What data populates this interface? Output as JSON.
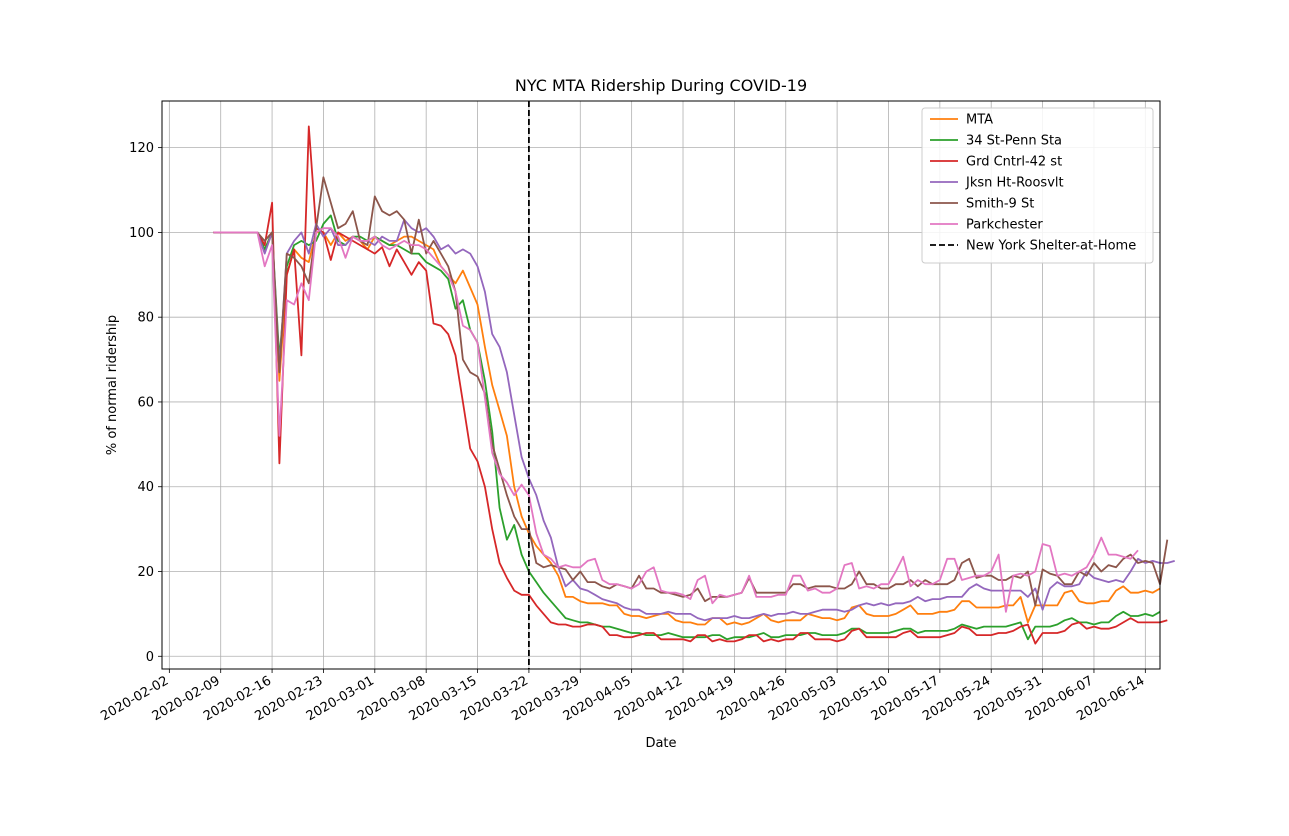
{
  "chart_data": {
    "type": "line",
    "title": "NYC MTA Ridership During COVID-19",
    "xlabel": "Date",
    "ylabel": "% of normal ridership",
    "xlim": [
      "2020-02-01",
      "2020-06-16"
    ],
    "ylim": [
      -3,
      131
    ],
    "grid": true,
    "legend_position": "top-right",
    "x_ticks": [
      "2020-02-02",
      "2020-02-09",
      "2020-02-16",
      "2020-02-23",
      "2020-03-01",
      "2020-03-08",
      "2020-03-15",
      "2020-03-22",
      "2020-03-29",
      "2020-04-05",
      "2020-04-12",
      "2020-04-19",
      "2020-04-26",
      "2020-05-03",
      "2020-05-10",
      "2020-05-17",
      "2020-05-24",
      "2020-05-31",
      "2020-06-07",
      "2020-06-14"
    ],
    "y_ticks": [
      0,
      20,
      40,
      60,
      80,
      100,
      120
    ],
    "start_date": "2020-02-08",
    "series": [
      {
        "name": "MTA",
        "color": "#ff7f0e",
        "values": [
          100,
          100,
          100,
          100,
          100,
          100,
          100,
          96,
          100,
          65,
          90,
          96,
          94,
          93,
          100,
          100,
          97,
          100,
          98,
          99,
          98,
          96,
          99,
          98,
          97,
          98,
          99,
          99,
          98,
          97,
          96,
          92,
          90,
          88,
          91,
          87,
          83,
          73,
          64,
          58,
          52,
          40,
          33,
          29,
          26,
          24,
          22,
          19,
          14,
          14,
          13,
          12.5,
          12.5,
          12.5,
          12,
          12,
          10,
          9.5,
          9.5,
          9,
          9.5,
          10,
          10,
          8.5,
          8,
          8,
          7.5,
          7.5,
          9,
          9,
          7.5,
          8,
          7.5,
          8,
          9,
          10,
          8.5,
          8,
          8.5,
          8.5,
          8.5,
          10,
          9.5,
          9,
          9,
          8.5,
          9,
          11.5,
          12,
          10,
          9.5,
          9.5,
          9.5,
          10,
          11,
          12,
          10,
          10,
          10,
          10.5,
          10.5,
          11,
          13,
          13,
          11.5,
          11.5,
          11.5,
          11.5,
          12,
          12,
          14,
          8,
          12,
          12,
          12,
          12,
          15,
          15.5,
          13,
          12.5,
          12.5,
          13,
          13,
          15.5,
          16.5,
          15,
          15,
          15.5,
          15,
          16
        ]
      },
      {
        "name": "34 St-Penn Sta",
        "color": "#2ca02c",
        "values": [
          100,
          100,
          100,
          100,
          100,
          100,
          100,
          96,
          100,
          70,
          92,
          97,
          98,
          97,
          98,
          102,
          104,
          98,
          97,
          99,
          99,
          98,
          99,
          98,
          97,
          97,
          96,
          95,
          95,
          93,
          92,
          91,
          89,
          82,
          84,
          77,
          74,
          65,
          53,
          35,
          27.5,
          31,
          24,
          20,
          17.5,
          15,
          13,
          11,
          9,
          8.5,
          8,
          8,
          7.5,
          7,
          7,
          6.5,
          6,
          5.5,
          5.5,
          5,
          5,
          5,
          5.5,
          5,
          4.5,
          4.5,
          4.5,
          4.5,
          5,
          5,
          4,
          4.5,
          4.5,
          4.5,
          5,
          5.5,
          4.5,
          4.5,
          5,
          5,
          5,
          5.5,
          5.5,
          5,
          5,
          5,
          5.5,
          6.5,
          6.5,
          5.5,
          5.5,
          5.5,
          5.5,
          6,
          6.5,
          6.5,
          5.5,
          6,
          6,
          6,
          6,
          6.5,
          7.5,
          7,
          6.5,
          7,
          7,
          7,
          7,
          7.5,
          8,
          4,
          7,
          7,
          7,
          7.5,
          8.5,
          9,
          8,
          8,
          7.5,
          8,
          8,
          9.5,
          10.5,
          9.5,
          9.5,
          10,
          9.5,
          10.5
        ]
      },
      {
        "name": "Grd Cntrl-42 st",
        "color": "#d62728",
        "values": [
          100,
          100,
          100,
          100,
          100,
          100,
          100,
          97,
          107,
          45.5,
          90,
          96,
          71,
          125,
          101,
          100,
          93.5,
          100,
          99,
          98,
          97,
          96,
          95,
          96.5,
          92,
          96,
          93,
          90,
          93,
          91,
          78.5,
          78,
          76,
          71,
          60,
          49,
          46,
          40,
          30,
          22,
          18.5,
          15.5,
          14.5,
          14.5,
          12,
          10,
          8,
          7.5,
          7.5,
          7,
          7,
          7.5,
          7.5,
          7,
          5,
          5,
          4.5,
          4.5,
          5,
          5.5,
          5.5,
          4,
          4,
          4,
          4,
          3.5,
          5,
          5,
          3.5,
          4,
          3.5,
          3.5,
          4,
          5,
          5,
          3.5,
          4,
          3.5,
          4,
          4,
          5.5,
          5.5,
          4,
          4,
          4,
          3.5,
          4,
          6,
          6.5,
          4.5,
          4.5,
          4.5,
          4.5,
          4.5,
          5.5,
          6,
          4.5,
          4.5,
          4.5,
          4.5,
          5,
          5.5,
          7,
          6.5,
          5,
          5,
          5,
          5.5,
          5.5,
          6,
          7,
          7.5,
          3,
          5.5,
          5.5,
          5.5,
          6,
          7.5,
          8,
          6.5,
          7,
          6.5,
          6.5,
          7,
          8,
          9,
          8,
          8,
          8,
          8,
          8.5
        ]
      },
      {
        "name": "Jksn Ht-Roosvlt",
        "color": "#9467bd",
        "values": [
          100,
          100,
          100,
          100,
          100,
          100,
          100,
          95,
          100,
          68,
          95,
          98,
          100,
          95,
          102,
          99,
          101,
          97,
          97,
          99,
          98,
          98,
          97,
          99,
          98,
          98,
          103,
          101,
          100,
          101,
          99,
          96,
          97,
          95,
          96,
          95,
          92,
          86,
          76,
          73,
          67,
          57,
          47,
          42,
          38,
          32,
          28,
          21,
          16.5,
          18,
          16,
          15.5,
          14.5,
          13.5,
          13,
          12.5,
          11.5,
          11,
          11,
          10,
          10,
          10,
          10.5,
          10,
          10,
          10,
          9,
          8.5,
          9,
          9,
          9,
          9.5,
          9,
          9,
          9.5,
          10,
          9.5,
          10,
          10,
          10.5,
          10,
          10,
          10.5,
          11,
          11,
          11,
          10.5,
          11,
          12,
          12.5,
          12,
          12.5,
          12,
          12.5,
          12.5,
          13,
          14,
          13,
          13.5,
          13.5,
          14,
          14,
          14,
          16,
          17,
          16,
          15.5,
          15.5,
          15.5,
          15.5,
          15.5,
          14,
          16,
          11,
          16,
          17.5,
          16.5,
          16.5,
          17,
          20,
          18.5,
          18,
          17.5,
          18,
          17.5,
          20,
          23,
          22,
          22.5,
          22,
          22,
          22.5
        ]
      },
      {
        "name": "Smith-9 St",
        "color": "#8c564b",
        "values": [
          100,
          100,
          100,
          100,
          100,
          100,
          100,
          98,
          100,
          67,
          95,
          94,
          92,
          88,
          101,
          113,
          107,
          101,
          102,
          105,
          98,
          97,
          108.5,
          105,
          104,
          105,
          103,
          95,
          103,
          95,
          98,
          95,
          92,
          86,
          70,
          67,
          66,
          62,
          50,
          44,
          38,
          33,
          30,
          30,
          22,
          21,
          21.5,
          21,
          20.5,
          18,
          20,
          17.5,
          17.5,
          16.5,
          16,
          17,
          16.5,
          16,
          19,
          16,
          16,
          15,
          15,
          14.5,
          14,
          14.5,
          16,
          13,
          14,
          14,
          14,
          14.5,
          15,
          18.5,
          15,
          15,
          15,
          15,
          15,
          17,
          17,
          16,
          16.5,
          16.5,
          16.5,
          16,
          16,
          17,
          20,
          17,
          17,
          16,
          16,
          17,
          17,
          18,
          16.5,
          18,
          17,
          17,
          17,
          18,
          22,
          23,
          18.5,
          19,
          19,
          18,
          18,
          19,
          18.5,
          20,
          12,
          20.5,
          19.5,
          19,
          17,
          17,
          20,
          19,
          22,
          20,
          21.5,
          21,
          23,
          24,
          22,
          22.5,
          22,
          17,
          27.5
        ]
      },
      {
        "name": "Parkchester",
        "color": "#e377c2",
        "values": [
          100,
          100,
          100,
          100,
          100,
          100,
          100,
          92,
          97,
          52,
          84,
          83,
          88,
          84,
          100,
          101,
          101,
          99,
          94,
          99,
          98,
          98,
          99,
          97,
          96,
          97,
          98,
          97,
          97,
          96,
          94,
          92,
          90,
          86,
          78,
          77,
          74,
          61,
          48,
          43,
          41,
          38,
          40.5,
          38,
          29,
          24,
          23,
          21,
          21.5,
          21,
          21,
          22.5,
          23,
          18,
          17,
          17,
          16.5,
          16,
          17,
          20,
          21,
          15.5,
          15,
          15,
          14.5,
          13.5,
          18,
          19,
          12.5,
          14.5,
          14,
          14.5,
          15,
          19,
          14,
          14,
          14,
          14.5,
          14.5,
          19,
          19,
          15.5,
          16,
          15,
          15,
          16,
          21.5,
          22,
          16,
          16.5,
          16,
          17,
          17,
          20,
          23.5,
          16.5,
          18,
          17,
          17,
          18,
          23,
          23,
          18,
          18.5,
          19,
          19,
          20,
          24,
          10.5,
          19,
          19.5,
          19,
          20,
          26.5,
          26,
          19,
          19.5,
          19,
          20,
          21,
          24,
          28,
          24,
          24,
          23.5,
          23,
          25
        ]
      }
    ],
    "vline": {
      "date": "2020-03-22",
      "label": "New York Shelter-at-Home",
      "color": "#000000"
    }
  }
}
